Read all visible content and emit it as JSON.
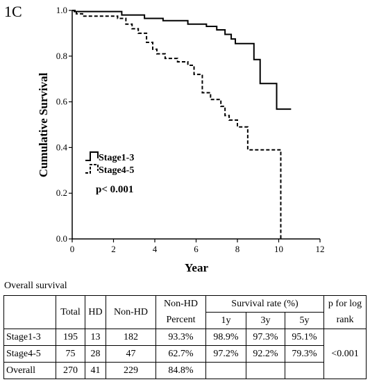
{
  "figure": {
    "panel_label": "1C",
    "caption": "Overall survival"
  },
  "chart_data": {
    "type": "line",
    "title": "",
    "xlabel": "Year",
    "ylabel": "Cumulative Survival",
    "xlim": [
      0,
      12
    ],
    "ylim": [
      0.0,
      1.0
    ],
    "x_ticks": [
      "0",
      "2",
      "4",
      "6",
      "8",
      "10",
      "12"
    ],
    "y_ticks": [
      "0.0",
      "0.2",
      "0.4",
      "0.6",
      "0.8",
      "1.0"
    ],
    "grid": false,
    "legend_position": "middle-left",
    "annotation": "p< 0.001",
    "series": [
      {
        "name": "Stage1-3",
        "style": "solid",
        "step": [
          [
            0,
            1.0
          ],
          [
            0.1,
            0.995
          ],
          [
            2.4,
            0.98
          ],
          [
            3.5,
            0.965
          ],
          [
            4.4,
            0.955
          ],
          [
            5.6,
            0.94
          ],
          [
            6.5,
            0.93
          ],
          [
            7.0,
            0.915
          ],
          [
            7.4,
            0.895
          ],
          [
            7.7,
            0.875
          ],
          [
            7.9,
            0.855
          ],
          [
            8.8,
            0.785
          ],
          [
            9.1,
            0.68
          ],
          [
            9.9,
            0.568
          ],
          [
            10.6,
            0.568
          ]
        ]
      },
      {
        "name": "Stage4-5",
        "style": "dashed",
        "step": [
          [
            0,
            1.0
          ],
          [
            0.2,
            0.985
          ],
          [
            0.5,
            0.975
          ],
          [
            2.2,
            0.965
          ],
          [
            2.6,
            0.94
          ],
          [
            2.9,
            0.92
          ],
          [
            3.2,
            0.9
          ],
          [
            3.6,
            0.86
          ],
          [
            3.9,
            0.83
          ],
          [
            4.1,
            0.81
          ],
          [
            4.5,
            0.79
          ],
          [
            5.1,
            0.775
          ],
          [
            5.6,
            0.76
          ],
          [
            5.9,
            0.72
          ],
          [
            6.3,
            0.64
          ],
          [
            6.7,
            0.61
          ],
          [
            7.2,
            0.58
          ],
          [
            7.4,
            0.54
          ],
          [
            7.6,
            0.52
          ],
          [
            8.0,
            0.49
          ],
          [
            8.5,
            0.39
          ],
          [
            10.1,
            0.0
          ]
        ]
      }
    ]
  },
  "table": {
    "headers": {
      "total": "Total",
      "hd": "HD",
      "non_hd": "Non-HD",
      "non_hd_percent_1": "Non-HD",
      "non_hd_percent_2": "Percent",
      "survival_rate": "Survival rate (%)",
      "y1": "1y",
      "y3": "3y",
      "y5": "5y",
      "p_1": "p for log",
      "p_2": "rank"
    },
    "rows": [
      {
        "label": "Stage1-3",
        "total": "195",
        "hd": "13",
        "non_hd": "182",
        "percent": "93.3%",
        "y1": "98.9%",
        "y3": "97.3%",
        "y5": "95.1%"
      },
      {
        "label": "Stage4-5",
        "total": "75",
        "hd": "28",
        "non_hd": "47",
        "percent": "62.7%",
        "y1": "97.2%",
        "y3": "92.2%",
        "y5": "79.3%"
      },
      {
        "label": "Overall",
        "total": "270",
        "hd": "41",
        "non_hd": "229",
        "percent": "84.8%",
        "y1": "",
        "y3": "",
        "y5": ""
      }
    ],
    "p_value": "<0.001"
  }
}
